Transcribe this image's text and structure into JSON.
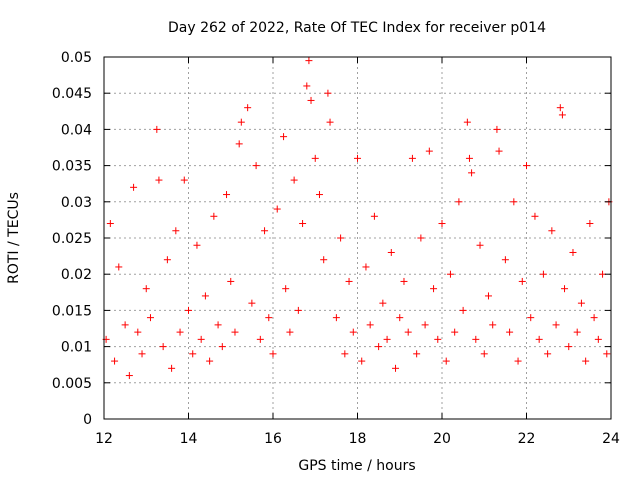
{
  "chart_data": {
    "type": "scatter",
    "title": "Day 262 of 2022, Rate Of TEC Index for receiver p014",
    "xlabel": "GPS time / hours",
    "ylabel": "ROTI / TECUs",
    "xlim": [
      12,
      24
    ],
    "ylim": [
      0,
      0.05
    ],
    "x_ticks": [
      12,
      14,
      16,
      18,
      20,
      22,
      24
    ],
    "x_tick_labels": [
      "12",
      "14",
      "16",
      "18",
      "20",
      "22",
      "24"
    ],
    "y_ticks": [
      0,
      0.005,
      0.01,
      0.015,
      0.02,
      0.025,
      0.03,
      0.035,
      0.04,
      0.045,
      0.05
    ],
    "y_tick_labels": [
      "0",
      "0.005",
      "0.01",
      "0.015",
      "0.02",
      "0.025",
      "0.03",
      "0.035",
      "0.04",
      "0.045",
      "0.05"
    ],
    "grid": true,
    "marker": "plus",
    "color": "#ff0000",
    "series": [
      {
        "name": "ROTI",
        "points": [
          [
            12.05,
            0.011
          ],
          [
            12.15,
            0.027
          ],
          [
            12.25,
            0.008
          ],
          [
            12.35,
            0.021
          ],
          [
            12.5,
            0.013
          ],
          [
            12.6,
            0.006
          ],
          [
            12.7,
            0.032
          ],
          [
            12.8,
            0.012
          ],
          [
            12.9,
            0.009
          ],
          [
            13.0,
            0.018
          ],
          [
            13.1,
            0.014
          ],
          [
            13.25,
            0.04
          ],
          [
            13.3,
            0.033
          ],
          [
            13.4,
            0.01
          ],
          [
            13.5,
            0.022
          ],
          [
            13.6,
            0.007
          ],
          [
            13.7,
            0.026
          ],
          [
            13.8,
            0.012
          ],
          [
            13.9,
            0.033
          ],
          [
            14.0,
            0.015
          ],
          [
            14.1,
            0.009
          ],
          [
            14.2,
            0.024
          ],
          [
            14.3,
            0.011
          ],
          [
            14.4,
            0.017
          ],
          [
            14.5,
            0.008
          ],
          [
            14.6,
            0.028
          ],
          [
            14.7,
            0.013
          ],
          [
            14.8,
            0.01
          ],
          [
            14.9,
            0.031
          ],
          [
            15.0,
            0.019
          ],
          [
            15.1,
            0.012
          ],
          [
            15.2,
            0.038
          ],
          [
            15.25,
            0.041
          ],
          [
            15.4,
            0.043
          ],
          [
            15.5,
            0.016
          ],
          [
            15.6,
            0.035
          ],
          [
            15.7,
            0.011
          ],
          [
            15.8,
            0.026
          ],
          [
            15.9,
            0.014
          ],
          [
            16.0,
            0.009
          ],
          [
            16.1,
            0.029
          ],
          [
            16.25,
            0.039
          ],
          [
            16.3,
            0.018
          ],
          [
            16.4,
            0.012
          ],
          [
            16.5,
            0.033
          ],
          [
            16.6,
            0.015
          ],
          [
            16.7,
            0.027
          ],
          [
            16.8,
            0.046
          ],
          [
            16.85,
            0.0495
          ],
          [
            16.9,
            0.044
          ],
          [
            17.0,
            0.036
          ],
          [
            17.1,
            0.031
          ],
          [
            17.2,
            0.022
          ],
          [
            17.3,
            0.045
          ],
          [
            17.35,
            0.041
          ],
          [
            17.5,
            0.014
          ],
          [
            17.6,
            0.025
          ],
          [
            17.7,
            0.009
          ],
          [
            17.8,
            0.019
          ],
          [
            17.9,
            0.012
          ],
          [
            18.0,
            0.036
          ],
          [
            18.1,
            0.008
          ],
          [
            18.2,
            0.021
          ],
          [
            18.3,
            0.013
          ],
          [
            18.4,
            0.028
          ],
          [
            18.5,
            0.01
          ],
          [
            18.6,
            0.016
          ],
          [
            18.7,
            0.011
          ],
          [
            18.8,
            0.023
          ],
          [
            18.9,
            0.007
          ],
          [
            19.0,
            0.014
          ],
          [
            19.1,
            0.019
          ],
          [
            19.2,
            0.012
          ],
          [
            19.3,
            0.036
          ],
          [
            19.4,
            0.009
          ],
          [
            19.5,
            0.025
          ],
          [
            19.6,
            0.013
          ],
          [
            19.7,
            0.037
          ],
          [
            19.8,
            0.018
          ],
          [
            19.9,
            0.011
          ],
          [
            20.0,
            0.027
          ],
          [
            20.1,
            0.008
          ],
          [
            20.2,
            0.02
          ],
          [
            20.3,
            0.012
          ],
          [
            20.4,
            0.03
          ],
          [
            20.5,
            0.015
          ],
          [
            20.6,
            0.041
          ],
          [
            20.65,
            0.036
          ],
          [
            20.7,
            0.034
          ],
          [
            20.8,
            0.011
          ],
          [
            20.9,
            0.024
          ],
          [
            21.0,
            0.009
          ],
          [
            21.1,
            0.017
          ],
          [
            21.2,
            0.013
          ],
          [
            21.3,
            0.04
          ],
          [
            21.35,
            0.037
          ],
          [
            21.5,
            0.022
          ],
          [
            21.6,
            0.012
          ],
          [
            21.7,
            0.03
          ],
          [
            21.8,
            0.008
          ],
          [
            21.9,
            0.019
          ],
          [
            22.0,
            0.035
          ],
          [
            22.1,
            0.014
          ],
          [
            22.2,
            0.028
          ],
          [
            22.3,
            0.011
          ],
          [
            22.4,
            0.02
          ],
          [
            22.5,
            0.009
          ],
          [
            22.6,
            0.026
          ],
          [
            22.7,
            0.013
          ],
          [
            22.8,
            0.043
          ],
          [
            22.85,
            0.042
          ],
          [
            22.9,
            0.018
          ],
          [
            23.0,
            0.01
          ],
          [
            23.1,
            0.023
          ],
          [
            23.2,
            0.012
          ],
          [
            23.3,
            0.016
          ],
          [
            23.4,
            0.008
          ],
          [
            23.5,
            0.027
          ],
          [
            23.6,
            0.014
          ],
          [
            23.7,
            0.011
          ],
          [
            23.8,
            0.02
          ],
          [
            23.9,
            0.009
          ],
          [
            23.95,
            0.03
          ]
        ]
      }
    ]
  }
}
